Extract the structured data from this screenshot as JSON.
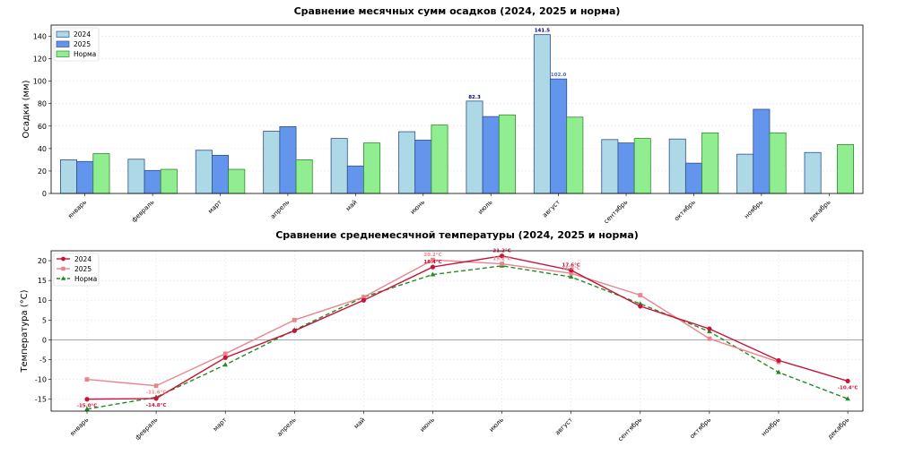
{
  "chart_data": [
    {
      "type": "bar",
      "title": "Сравнение месячных сумм осадков (2024, 2025 и норма)",
      "xlabel": "",
      "ylabel": "Осадки (мм)",
      "ylim": [
        0,
        150
      ],
      "yticks": [
        0,
        20,
        40,
        60,
        80,
        100,
        120,
        140
      ],
      "grid": true,
      "legend_position": "top-left",
      "categories": [
        "январь",
        "февраль",
        "март",
        "апрель",
        "май",
        "июнь",
        "июль",
        "август",
        "сентябрь",
        "октябрь",
        "ноябрь",
        "декабрь"
      ],
      "series": [
        {
          "name": "2024",
          "color": "#add8e6",
          "edge": "#2f4f8f",
          "values": [
            30,
            30.5,
            38.5,
            55.5,
            49,
            55,
            82.3,
            141.5,
            48,
            48.5,
            35,
            36.5
          ]
        },
        {
          "name": "2025",
          "color": "#6495ed",
          "edge": "#2f4f8f",
          "values": [
            28.5,
            20.5,
            34,
            59.5,
            24.5,
            47.5,
            68.5,
            102.0,
            45,
            27,
            75,
            null
          ]
        },
        {
          "name": "Норма",
          "color": "#90ee90",
          "edge": "#2e8b2e",
          "values": [
            35.5,
            21.5,
            21.5,
            30,
            45,
            61,
            70,
            68,
            49,
            54,
            54,
            43.5
          ]
        }
      ],
      "annotations": [
        {
          "category": "июль",
          "series": "2024",
          "text": "82.3",
          "color": "#000080"
        },
        {
          "category": "август",
          "series": "2024",
          "text": "141.5",
          "color": "#000080"
        },
        {
          "category": "август",
          "series": "2025",
          "text": "102.0",
          "color": "#4169e1"
        }
      ]
    },
    {
      "type": "line",
      "title": "Сравнение среднемесячной температуры (2024, 2025 и норма)",
      "xlabel": "",
      "ylabel": "Температура (°C)",
      "ylim": [
        -18,
        22.5
      ],
      "yticks": [
        -15,
        -10,
        -5,
        0,
        5,
        10,
        15,
        20
      ],
      "grid": true,
      "legend_position": "top-left",
      "categories": [
        "январь",
        "февраль",
        "март",
        "апрель",
        "май",
        "июнь",
        "июль",
        "август",
        "сентябрь",
        "октябрь",
        "ноябрь",
        "декабрь"
      ],
      "series": [
        {
          "name": "2024",
          "color": "#c8143c",
          "marker": "circle",
          "dash": false,
          "values": [
            -15.0,
            -14.8,
            -4.5,
            2.3,
            10.0,
            18.4,
            21.2,
            17.6,
            8.5,
            2.8,
            -5.2,
            -10.4
          ]
        },
        {
          "name": "2025",
          "color": "#e9848c",
          "marker": "square",
          "dash": false,
          "values": [
            -10,
            -11.6,
            -3.5,
            5.0,
            10.8,
            20.2,
            19.2,
            16.8,
            11.3,
            0.3,
            -5.6,
            null
          ]
        },
        {
          "name": "Норма",
          "color": "#228b22",
          "marker": "triangle",
          "dash": true,
          "values": [
            -17.5,
            -14.5,
            -6.3,
            2.5,
            10.8,
            16.5,
            18.7,
            15.9,
            9.1,
            2.1,
            -8.2,
            -14.9
          ]
        }
      ],
      "annotations": [
        {
          "category": "январь",
          "series": "2024",
          "text": "-15.0°C",
          "color": "#c8143c",
          "pos": "below"
        },
        {
          "category": "февраль",
          "series": "2024",
          "text": "-14.8°C",
          "color": "#c8143c",
          "pos": "below"
        },
        {
          "category": "февраль",
          "series": "2025",
          "text": "-11.6°C",
          "color": "#e9848c",
          "pos": "below"
        },
        {
          "category": "июнь",
          "series": "2024",
          "text": "18.4°C",
          "color": "#c8143c",
          "pos": "above"
        },
        {
          "category": "июнь",
          "series": "2025",
          "text": "20.2°C",
          "color": "#e9848c",
          "pos": "above"
        },
        {
          "category": "июль",
          "series": "2024",
          "text": "21.2°C",
          "color": "#c8143c",
          "pos": "above"
        },
        {
          "category": "июль",
          "series": "2025",
          "text": "19.2°C",
          "color": "#e9848c",
          "pos": "above"
        },
        {
          "category": "август",
          "series": "2024",
          "text": "17.6°C",
          "color": "#c8143c",
          "pos": "above"
        },
        {
          "category": "август",
          "series": "2025",
          "text": "16.8°C",
          "color": "#e9848c",
          "pos": "above"
        },
        {
          "category": "декабрь",
          "series": "2024",
          "text": "-10.4°C",
          "color": "#c8143c",
          "pos": "below"
        }
      ]
    }
  ]
}
